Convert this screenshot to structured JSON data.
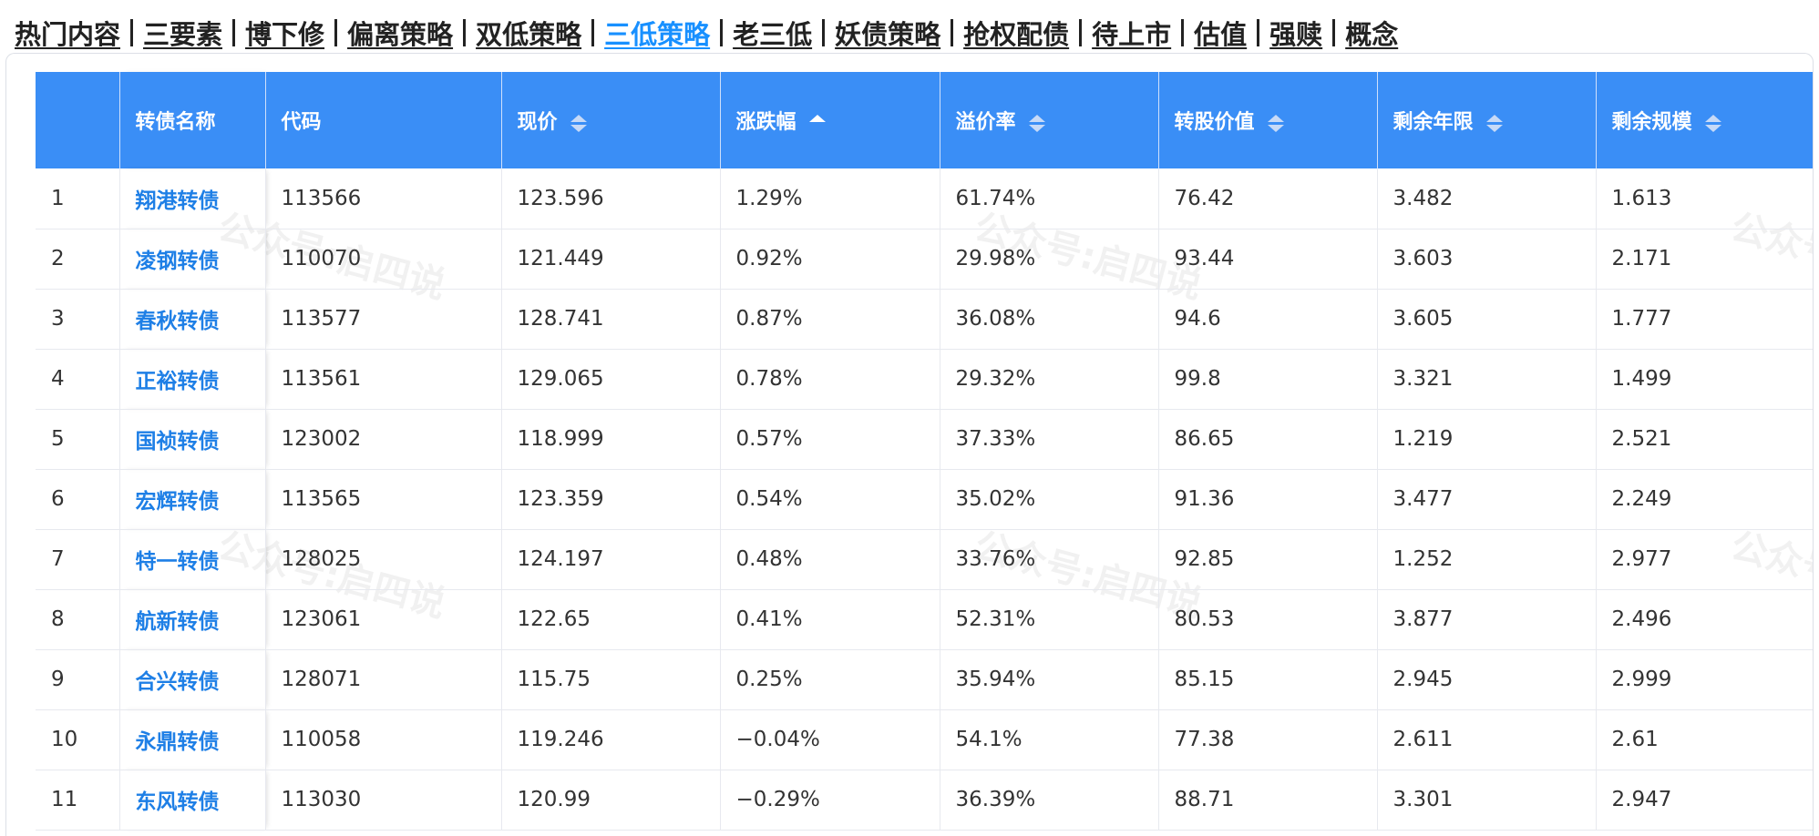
{
  "nav": [
    {
      "label": "热门内容",
      "active": false
    },
    {
      "label": "三要素",
      "active": false
    },
    {
      "label": "博下修",
      "active": false
    },
    {
      "label": "偏离策略",
      "active": false
    },
    {
      "label": "双低策略",
      "active": false
    },
    {
      "label": "三低策略",
      "active": true
    },
    {
      "label": "老三低",
      "active": false
    },
    {
      "label": "妖债策略",
      "active": false
    },
    {
      "label": "抢权配债",
      "active": false
    },
    {
      "label": "待上市",
      "active": false
    },
    {
      "label": "估值",
      "active": false
    },
    {
      "label": "强赎",
      "active": false
    },
    {
      "label": "概念",
      "active": false
    }
  ],
  "table": {
    "columns": [
      {
        "key": "idx",
        "label": "",
        "sortable": false,
        "sort": "none"
      },
      {
        "key": "name",
        "label": "转债名称",
        "sortable": false,
        "sort": "none"
      },
      {
        "key": "code",
        "label": "代码",
        "sortable": false,
        "sort": "none"
      },
      {
        "key": "price",
        "label": "现价",
        "sortable": true,
        "sort": "none"
      },
      {
        "key": "change",
        "label": "涨跌幅",
        "sortable": true,
        "sort": "desc"
      },
      {
        "key": "premium",
        "label": "溢价率",
        "sortable": true,
        "sort": "none"
      },
      {
        "key": "conv_value",
        "label": "转股价值",
        "sortable": true,
        "sort": "none"
      },
      {
        "key": "years_left",
        "label": "剩余年限",
        "sortable": true,
        "sort": "none"
      },
      {
        "key": "size_left",
        "label": "剩余规模",
        "sortable": true,
        "sort": "none"
      }
    ],
    "rows": [
      {
        "idx": "1",
        "name": "翔港转债",
        "code": "113566",
        "price": "123.596",
        "change": "1.29%",
        "premium": "61.74%",
        "conv_value": "76.42",
        "years_left": "3.482",
        "size_left": "1.613"
      },
      {
        "idx": "2",
        "name": "凌钢转债",
        "code": "110070",
        "price": "121.449",
        "change": "0.92%",
        "premium": "29.98%",
        "conv_value": "93.44",
        "years_left": "3.603",
        "size_left": "2.171"
      },
      {
        "idx": "3",
        "name": "春秋转债",
        "code": "113577",
        "price": "128.741",
        "change": "0.87%",
        "premium": "36.08%",
        "conv_value": "94.6",
        "years_left": "3.605",
        "size_left": "1.777"
      },
      {
        "idx": "4",
        "name": "正裕转债",
        "code": "113561",
        "price": "129.065",
        "change": "0.78%",
        "premium": "29.32%",
        "conv_value": "99.8",
        "years_left": "3.321",
        "size_left": "1.499"
      },
      {
        "idx": "5",
        "name": "国祯转债",
        "code": "123002",
        "price": "118.999",
        "change": "0.57%",
        "premium": "37.33%",
        "conv_value": "86.65",
        "years_left": "1.219",
        "size_left": "2.521"
      },
      {
        "idx": "6",
        "name": "宏辉转债",
        "code": "113565",
        "price": "123.359",
        "change": "0.54%",
        "premium": "35.02%",
        "conv_value": "91.36",
        "years_left": "3.477",
        "size_left": "2.249"
      },
      {
        "idx": "7",
        "name": "特一转债",
        "code": "128025",
        "price": "124.197",
        "change": "0.48%",
        "premium": "33.76%",
        "conv_value": "92.85",
        "years_left": "1.252",
        "size_left": "2.977"
      },
      {
        "idx": "8",
        "name": "航新转债",
        "code": "123061",
        "price": "122.65",
        "change": "0.41%",
        "premium": "52.31%",
        "conv_value": "80.53",
        "years_left": "3.877",
        "size_left": "2.496"
      },
      {
        "idx": "9",
        "name": "合兴转债",
        "code": "128071",
        "price": "115.75",
        "change": "0.25%",
        "premium": "35.94%",
        "conv_value": "85.15",
        "years_left": "2.945",
        "size_left": "2.999"
      },
      {
        "idx": "10",
        "name": "永鼎转债",
        "code": "110058",
        "price": "119.246",
        "change": "−0.04%",
        "premium": "54.1%",
        "conv_value": "77.38",
        "years_left": "2.611",
        "size_left": "2.61"
      },
      {
        "idx": "11",
        "name": "东风转债",
        "code": "113030",
        "price": "120.99",
        "change": "−0.29%",
        "premium": "36.39%",
        "conv_value": "88.71",
        "years_left": "3.301",
        "size_left": "2.947"
      }
    ]
  },
  "watermark": "公众号:启四说",
  "colors": {
    "header_bg": "#3a8ef6",
    "link": "#1e7fe6",
    "active_nav": "#1890ff"
  }
}
